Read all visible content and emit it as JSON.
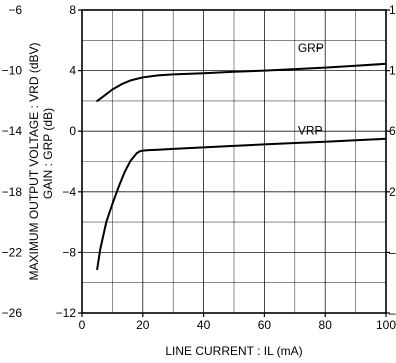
{
  "chart_data": {
    "type": "line",
    "xlabel": "LINE CURRENT : IL (mA)",
    "ylabel_left_outer": "MAXIMUM OUTPUT VOLTAGE : VRD (dBV)",
    "ylabel_left_inner": "GAIN : GRP (dB)",
    "xlim": [
      0,
      100
    ],
    "ylim_gain": [
      -12,
      8
    ],
    "ylim_voltage": [
      -26,
      -6
    ],
    "x_ticks": [
      "0",
      "20",
      "40",
      "60",
      "80",
      "100"
    ],
    "y_ticks_gain": [
      "8",
      "4",
      "0",
      "−4",
      "−8",
      "−12"
    ],
    "y_ticks_voltage": [
      "−6",
      "−10",
      "−14",
      "−18",
      "−22",
      "−26"
    ],
    "y_ticks_right": [
      "1",
      "1",
      "6",
      "2",
      "–",
      "–"
    ],
    "grid": true,
    "series": [
      {
        "name": "GRP",
        "axis": "gain",
        "x": [
          5,
          7,
          10,
          13,
          16,
          20,
          25,
          30,
          40,
          50,
          60,
          70,
          80,
          90,
          100
        ],
        "y": [
          2.0,
          2.3,
          2.75,
          3.1,
          3.35,
          3.55,
          3.68,
          3.75,
          3.82,
          3.93,
          4.0,
          4.1,
          4.2,
          4.32,
          4.45
        ]
      },
      {
        "name": "VRP",
        "axis": "gain",
        "x": [
          5,
          6,
          8,
          10,
          12,
          14,
          16,
          18,
          19,
          20,
          22,
          25,
          30,
          40,
          50,
          60,
          70,
          80,
          90,
          100
        ],
        "y": [
          -9.1,
          -7.8,
          -6.0,
          -4.8,
          -3.7,
          -2.7,
          -1.95,
          -1.45,
          -1.33,
          -1.28,
          -1.25,
          -1.22,
          -1.17,
          -1.07,
          -0.97,
          -0.87,
          -0.78,
          -0.7,
          -0.6,
          -0.5
        ]
      }
    ]
  },
  "labels": {
    "series_grp": "GRP",
    "series_vrp": "VRP"
  },
  "colors": {
    "line": "#000000",
    "grid": "#000000",
    "background": "#ffffff"
  }
}
